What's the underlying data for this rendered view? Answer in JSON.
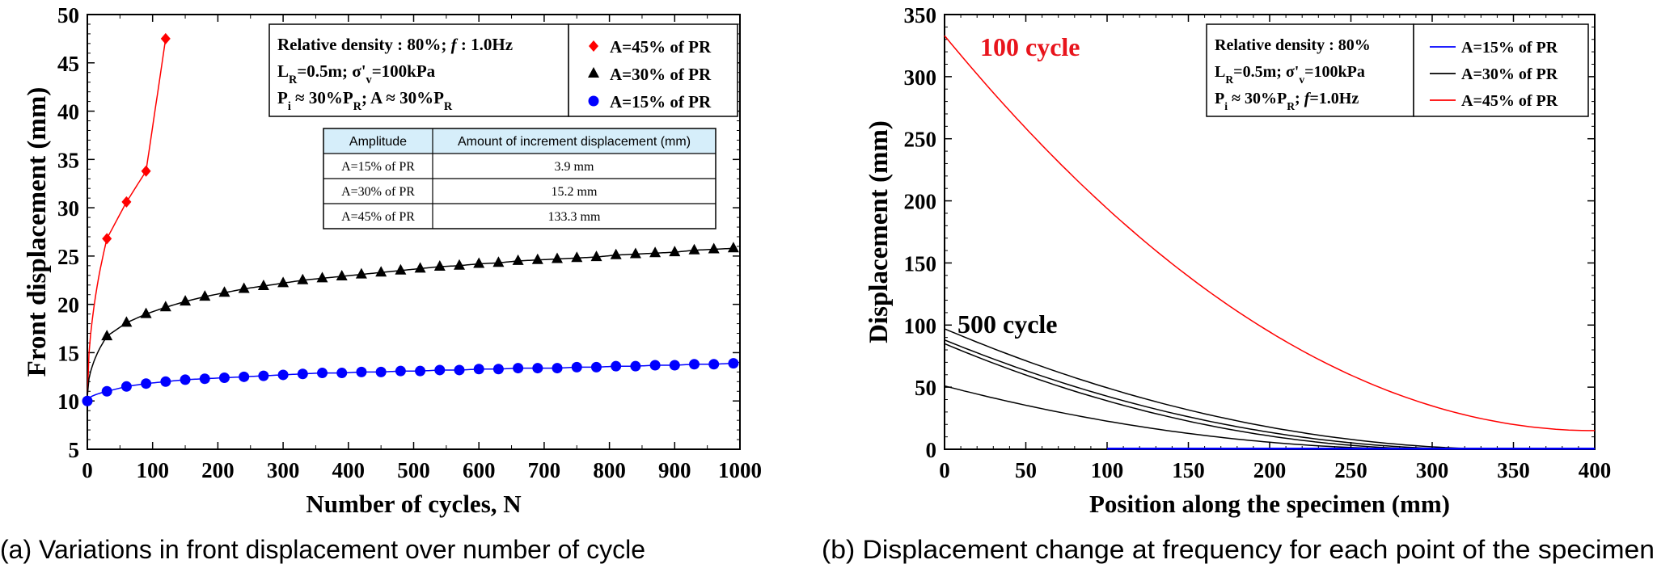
{
  "chart_data": [
    {
      "type": "line",
      "panel_label": "(a)",
      "caption": "Variations in front displacement over number of cycle",
      "xlabel": "Number of cycles, N",
      "ylabel": "Front displacement (mm)",
      "xlim": [
        0,
        1000
      ],
      "ylim": [
        5,
        50
      ],
      "xticks": [
        0,
        100,
        200,
        300,
        400,
        500,
        600,
        700,
        800,
        900,
        1000
      ],
      "yticks": [
        5,
        10,
        15,
        20,
        25,
        30,
        35,
        40,
        45,
        50
      ],
      "info_lines": [
        [
          "Relative density : 80%; ",
          "f",
          " : 1.0Hz"
        ],
        [
          "L",
          "R",
          "=0.5m; σ'",
          "v",
          "=100kPa"
        ],
        [
          "P",
          "i",
          " ≈ 30%P",
          "R",
          "; A ≈ 30%P",
          "R"
        ]
      ],
      "series": [
        {
          "name": "A=45% of PR",
          "color": "#ff0000",
          "marker": "diamond",
          "x": [
            0,
            30,
            60,
            90,
            120
          ],
          "y": [
            10,
            26.8,
            30.6,
            33.8,
            47.5
          ]
        },
        {
          "name": "A=30% of PR",
          "color": "#000000",
          "marker": "triangle",
          "x": [
            0,
            30,
            60,
            90,
            120,
            150,
            180,
            210,
            240,
            270,
            300,
            330,
            360,
            390,
            420,
            450,
            480,
            510,
            540,
            570,
            600,
            630,
            660,
            690,
            720,
            750,
            780,
            810,
            840,
            870,
            900,
            930,
            960,
            990
          ],
          "y": [
            10.5,
            16.7,
            18.1,
            19.0,
            19.7,
            20.3,
            20.8,
            21.2,
            21.6,
            21.9,
            22.2,
            22.5,
            22.7,
            22.9,
            23.1,
            23.3,
            23.5,
            23.7,
            23.9,
            24.0,
            24.2,
            24.3,
            24.5,
            24.6,
            24.7,
            24.8,
            24.9,
            25.1,
            25.2,
            25.3,
            25.4,
            25.6,
            25.7,
            25.8
          ]
        },
        {
          "name": "A=15% of PR",
          "color": "#0000ff",
          "marker": "circle",
          "x": [
            0,
            30,
            60,
            90,
            120,
            150,
            180,
            210,
            240,
            270,
            300,
            330,
            360,
            390,
            420,
            450,
            480,
            510,
            540,
            570,
            600,
            630,
            660,
            690,
            720,
            750,
            780,
            810,
            840,
            870,
            900,
            930,
            960,
            990
          ],
          "y": [
            10,
            11.0,
            11.5,
            11.8,
            12.0,
            12.2,
            12.3,
            12.4,
            12.5,
            12.6,
            12.7,
            12.8,
            12.9,
            12.9,
            13.0,
            13.0,
            13.1,
            13.1,
            13.2,
            13.2,
            13.3,
            13.3,
            13.4,
            13.4,
            13.4,
            13.5,
            13.5,
            13.6,
            13.6,
            13.7,
            13.7,
            13.8,
            13.8,
            13.9
          ]
        }
      ],
      "table": {
        "headers": [
          "Amplitude",
          "Amount of increment displacement (mm)"
        ],
        "rows": [
          [
            "A=15% of PR",
            "3.9 mm"
          ],
          [
            "A=30% of PR",
            "15.2 mm"
          ],
          [
            "A=45% of PR",
            "133.3 mm"
          ]
        ]
      }
    },
    {
      "type": "line",
      "panel_label": "(b)",
      "caption": "Displacement change at frequency for each point of the specimen",
      "xlabel": "Position along the specimen (mm)",
      "ylabel": "Displacement (mm)",
      "xlim": [
        0,
        400
      ],
      "ylim": [
        0,
        350
      ],
      "xticks": [
        0,
        50,
        100,
        150,
        200,
        250,
        300,
        350,
        400
      ],
      "yticks": [
        0,
        50,
        100,
        150,
        200,
        250,
        300,
        350
      ],
      "annotations": [
        "100 cycle",
        "500 cycle"
      ],
      "info_lines": [
        [
          "Relative density : 80%"
        ],
        [
          "L",
          "R",
          "=0.5m; σ'",
          "v",
          "=100kPa"
        ],
        [
          "P",
          "i",
          " ≈ 30%P",
          "R",
          "; ",
          "f",
          "=1.0Hz"
        ]
      ],
      "legend": [
        {
          "name": "A=15% of PR",
          "color": "#0000ff"
        },
        {
          "name": "A=30% of PR",
          "color": "#000000"
        },
        {
          "name": "A=45% of PR",
          "color": "#ff0000"
        }
      ],
      "series": [
        {
          "name": "A=45% of PR",
          "color": "#ff0000",
          "x": [
            0,
            400
          ],
          "y0": 333,
          "y_end": 15
        },
        {
          "name": "A=30% of PR (1)",
          "color": "#000000",
          "x": [
            0,
            400
          ],
          "y0": 97,
          "x_end": 350
        },
        {
          "name": "A=30% of PR (2)",
          "color": "#000000",
          "x": [
            0,
            400
          ],
          "y0": 88,
          "x_end": 330
        },
        {
          "name": "A=30% of PR (3)",
          "color": "#000000",
          "x": [
            0,
            400
          ],
          "y0": 85,
          "x_end": 310
        },
        {
          "name": "A=30% of PR (4)",
          "color": "#000000",
          "x": [
            0,
            400
          ],
          "y0": 51,
          "x_end": 300
        },
        {
          "name": "A=15% of PR",
          "color": "#0000ff",
          "x": [
            100,
            400
          ],
          "y": [
            0.5,
            0.5
          ]
        }
      ]
    }
  ]
}
